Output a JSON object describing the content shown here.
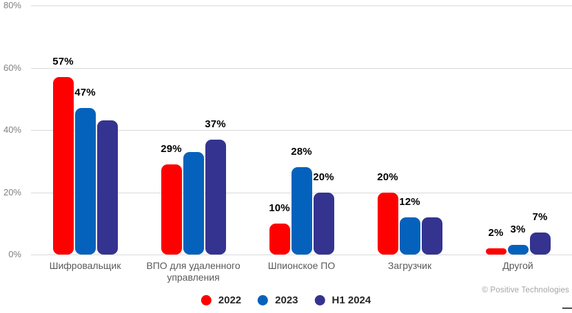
{
  "chart_data": {
    "type": "bar",
    "title": "",
    "xlabel": "",
    "ylabel": "",
    "categories": [
      "Шифровальщик",
      "ВПО для удаленного управления",
      "Шпионское ПО",
      "Загрузчик",
      "Другой"
    ],
    "series": [
      {
        "name": "2022",
        "color": "#ff0000",
        "values": [
          57,
          29,
          10,
          20,
          2
        ],
        "labels": [
          "57%",
          "29%",
          "10%",
          "20%",
          "2%"
        ]
      },
      {
        "name": "2023",
        "color": "#0562bc",
        "values": [
          47,
          33,
          28,
          12,
          3
        ],
        "labels": [
          "47%",
          null,
          "28%",
          "12%",
          "3%"
        ]
      },
      {
        "name": "H1 2024",
        "color": "#343390",
        "values": [
          43,
          37,
          20,
          12,
          7
        ],
        "labels": [
          null,
          "37%",
          "20%",
          null,
          "7%"
        ]
      }
    ],
    "ylim": [
      0,
      80
    ],
    "y_ticks": [
      0,
      20,
      40,
      60,
      80
    ],
    "y_tick_labels": [
      "0%",
      "20%",
      "40%",
      "60%",
      "80%"
    ],
    "grid": true,
    "legend_position": "bottom"
  },
  "footer": {
    "copyright": "© Positive Technologies"
  }
}
